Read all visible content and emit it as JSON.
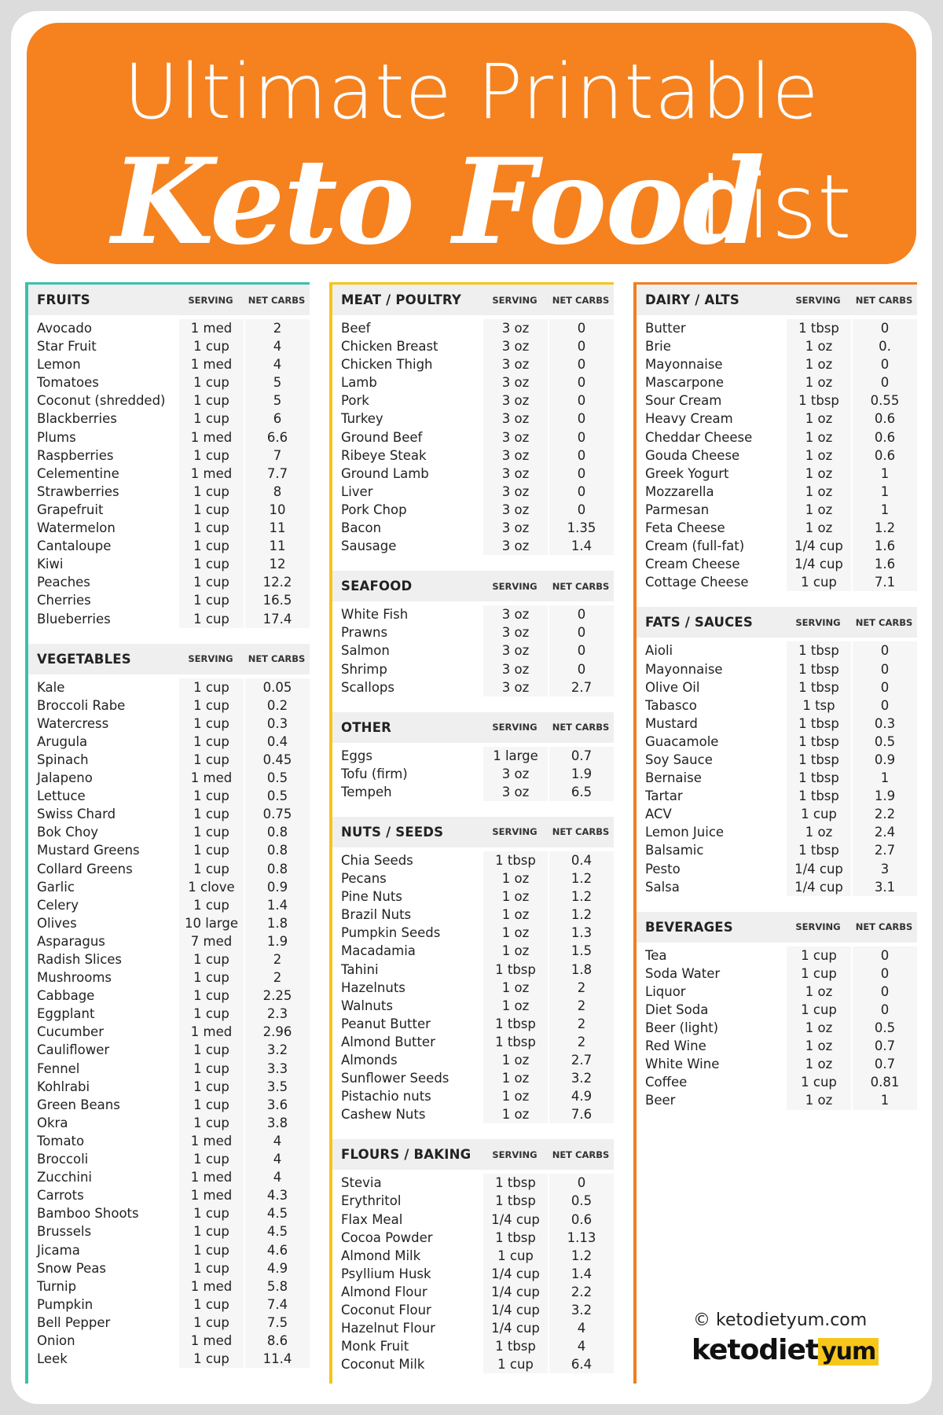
{
  "header": {
    "line1": "Ultimate Printable",
    "line2": "Keto Food",
    "line3": "List"
  },
  "columns": [
    {
      "sections": [
        {
          "title": "FRUITS",
          "headers": [
            "SERVING",
            "NET CARBS"
          ],
          "rows": [
            [
              "Avocado",
              "1 med",
              "2"
            ],
            [
              "Star Fruit",
              "1 cup",
              "4"
            ],
            [
              "Lemon",
              "1 med",
              "4"
            ],
            [
              "Tomatoes",
              "1 cup",
              "5"
            ],
            [
              "Coconut (shredded)",
              "1 cup",
              "5"
            ],
            [
              "Blackberries",
              "1 cup",
              "6"
            ],
            [
              "Plums",
              "1 med",
              "6.6"
            ],
            [
              "Raspberries",
              "1 cup",
              "7"
            ],
            [
              "Celementine",
              "1 med",
              "7.7"
            ],
            [
              "Strawberries",
              "1 cup",
              "8"
            ],
            [
              "Grapefruit",
              "1 cup",
              "10"
            ],
            [
              "Watermelon",
              "1 cup",
              "11"
            ],
            [
              "Cantaloupe",
              "1 cup",
              "11"
            ],
            [
              "Kiwi",
              "1 cup",
              "12"
            ],
            [
              "Peaches",
              "1 cup",
              "12.2"
            ],
            [
              "Cherries",
              "1 cup",
              "16.5"
            ],
            [
              "Blueberries",
              "1 cup",
              "17.4"
            ]
          ]
        },
        {
          "title": "VEGETABLES",
          "headers": [
            "SERVING",
            "NET CARBS"
          ],
          "rows": [
            [
              "Kale",
              "1 cup",
              "0.05"
            ],
            [
              "Broccoli Rabe",
              "1 cup",
              "0.2"
            ],
            [
              "Watercress",
              "1 cup",
              "0.3"
            ],
            [
              "Arugula",
              "1 cup",
              "0.4"
            ],
            [
              "Spinach",
              "1 cup",
              "0.45"
            ],
            [
              "Jalapeno",
              "1 med",
              "0.5"
            ],
            [
              "Lettuce",
              "1 cup",
              "0.5"
            ],
            [
              "Swiss Chard",
              "1 cup",
              "0.75"
            ],
            [
              "Bok Choy",
              "1 cup",
              "0.8"
            ],
            [
              "Mustard Greens",
              "1 cup",
              "0.8"
            ],
            [
              "Collard Greens",
              "1 cup",
              "0.8"
            ],
            [
              "Garlic",
              "1 clove",
              "0.9"
            ],
            [
              "Celery",
              "1 cup",
              "1.4"
            ],
            [
              "Olives",
              "10 large",
              "1.8"
            ],
            [
              "Asparagus",
              "7 med",
              "1.9"
            ],
            [
              "Radish Slices",
              "1 cup",
              "2"
            ],
            [
              "Mushrooms",
              "1 cup",
              "2"
            ],
            [
              "Cabbage",
              "1 cup",
              "2.25"
            ],
            [
              "Eggplant",
              "1 cup",
              "2.3"
            ],
            [
              "Cucumber",
              "1 med",
              "2.96"
            ],
            [
              "Cauliflower",
              "1 cup",
              "3.2"
            ],
            [
              "Fennel",
              "1 cup",
              "3.3"
            ],
            [
              "Kohlrabi",
              "1 cup",
              "3.5"
            ],
            [
              "Green Beans",
              "1 cup",
              "3.6"
            ],
            [
              "Okra",
              "1 cup",
              "3.8"
            ],
            [
              "Tomato",
              "1 med",
              "4"
            ],
            [
              "Broccoli",
              "1 cup",
              "4"
            ],
            [
              "Zucchini",
              "1 med",
              "4"
            ],
            [
              "Carrots",
              "1 med",
              "4.3"
            ],
            [
              "Bamboo Shoots",
              "1 cup",
              "4.5"
            ],
            [
              "Brussels",
              "1 cup",
              "4.5"
            ],
            [
              "Jicama",
              "1 cup",
              "4.6"
            ],
            [
              "Snow Peas",
              "1 cup",
              "4.9"
            ],
            [
              "Turnip",
              "1 med",
              "5.8"
            ],
            [
              "Pumpkin",
              "1 cup",
              "7.4"
            ],
            [
              "Bell Pepper",
              "1 cup",
              "7.5"
            ],
            [
              "Onion",
              "1 med",
              "8.6"
            ],
            [
              "Leek",
              "1 cup",
              "11.4"
            ]
          ]
        }
      ]
    },
    {
      "sections": [
        {
          "title": "MEAT / POULTRY",
          "headers": [
            "SERVING",
            "NET CARBS"
          ],
          "rows": [
            [
              "Beef",
              "3 oz",
              "0"
            ],
            [
              "Chicken Breast",
              "3 oz",
              "0"
            ],
            [
              "Chicken Thigh",
              "3 oz",
              "0"
            ],
            [
              "Lamb",
              "3 oz",
              "0"
            ],
            [
              "Pork",
              "3 oz",
              "0"
            ],
            [
              "Turkey",
              "3 oz",
              "0"
            ],
            [
              "Ground Beef",
              "3 oz",
              "0"
            ],
            [
              "Ribeye Steak",
              "3 oz",
              "0"
            ],
            [
              "Ground Lamb",
              "3 oz",
              "0"
            ],
            [
              "Liver",
              "3 oz",
              "0"
            ],
            [
              "Pork Chop",
              "3 oz",
              "0"
            ],
            [
              "Bacon",
              "3 oz",
              "1.35"
            ],
            [
              "Sausage",
              "3 oz",
              "1.4"
            ]
          ]
        },
        {
          "title": "SEAFOOD",
          "headers": [
            "SERVING",
            "NET CARBS"
          ],
          "rows": [
            [
              "White Fish",
              "3 oz",
              "0"
            ],
            [
              "Prawns",
              "3 oz",
              "0"
            ],
            [
              "Salmon",
              "3 oz",
              "0"
            ],
            [
              "Shrimp",
              "3 oz",
              "0"
            ],
            [
              "Scallops",
              "3 oz",
              "2.7"
            ]
          ]
        },
        {
          "title": "OTHER",
          "headers": [
            "SERVING",
            "NET CARBS"
          ],
          "rows": [
            [
              "Eggs",
              "1 large",
              "0.7"
            ],
            [
              "Tofu (firm)",
              "3 oz",
              "1.9"
            ],
            [
              "Tempeh",
              "3 oz",
              "6.5"
            ]
          ]
        },
        {
          "title": "NUTS / SEEDS",
          "headers": [
            "SERVING",
            "NET CARBS"
          ],
          "rows": [
            [
              "Chia Seeds",
              "1 tbsp",
              "0.4"
            ],
            [
              "Pecans",
              "1 oz",
              "1.2"
            ],
            [
              "Pine Nuts",
              "1 oz",
              "1.2"
            ],
            [
              "Brazil Nuts",
              "1 oz",
              "1.2"
            ],
            [
              "Pumpkin Seeds",
              "1 oz",
              "1.3"
            ],
            [
              "Macadamia",
              "1 oz",
              "1.5"
            ],
            [
              "Tahini",
              "1 tbsp",
              "1.8"
            ],
            [
              "Hazelnuts",
              "1 oz",
              "2"
            ],
            [
              "Walnuts",
              "1 oz",
              "2"
            ],
            [
              "Peanut Butter",
              "1 tbsp",
              "2"
            ],
            [
              "Almond Butter",
              "1 tbsp",
              "2"
            ],
            [
              "Almonds",
              "1 oz",
              "2.7"
            ],
            [
              "Sunflower Seeds",
              "1 oz",
              "3.2"
            ],
            [
              "Pistachio nuts",
              "1 oz",
              "4.9"
            ],
            [
              "Cashew Nuts",
              "1 oz",
              "7.6"
            ]
          ]
        },
        {
          "title": "FLOURS / BAKING",
          "headers": [
            "SERVING",
            "NET CARBS"
          ],
          "rows": [
            [
              "Stevia",
              "1 tbsp",
              "0"
            ],
            [
              "Erythritol",
              "1 tbsp",
              "0.5"
            ],
            [
              "Flax Meal",
              "1/4 cup",
              "0.6"
            ],
            [
              "Cocoa Powder",
              "1 tbsp",
              "1.13"
            ],
            [
              "Almond Milk",
              "1 cup",
              "1.2"
            ],
            [
              "Psyllium Husk",
              "1/4 cup",
              "1.4"
            ],
            [
              "Almond Flour",
              "1/4 cup",
              "2.2"
            ],
            [
              "Coconut Flour",
              "1/4 cup",
              "3.2"
            ],
            [
              "Hazelnut Flour",
              "1/4 cup",
              "4"
            ],
            [
              "Monk Fruit",
              "1 tbsp",
              "4"
            ],
            [
              "Coconut Milk",
              "1 cup",
              "6.4"
            ]
          ]
        }
      ]
    },
    {
      "sections": [
        {
          "title": "DAIRY / ALTS",
          "headers": [
            "SERVING",
            "NET CARBS"
          ],
          "rows": [
            [
              "Butter",
              "1 tbsp",
              "0"
            ],
            [
              "Brie",
              "1 oz",
              "0."
            ],
            [
              "Mayonnaise",
              "1 oz",
              "0"
            ],
            [
              "Mascarpone",
              "1 oz",
              "0"
            ],
            [
              "Sour Cream",
              "1 tbsp",
              "0.55"
            ],
            [
              "Heavy Cream",
              "1 oz",
              "0.6"
            ],
            [
              "Cheddar Cheese",
              "1 oz",
              "0.6"
            ],
            [
              "Gouda Cheese",
              "1 oz",
              "0.6"
            ],
            [
              "Greek Yogurt",
              "1 oz",
              "1"
            ],
            [
              "Mozzarella",
              "1 oz",
              "1"
            ],
            [
              "Parmesan",
              "1 oz",
              "1"
            ],
            [
              "Feta Cheese",
              "1 oz",
              "1.2"
            ],
            [
              "Cream (full-fat)",
              "1/4 cup",
              "1.6"
            ],
            [
              "Cream Cheese",
              "1/4 cup",
              "1.6"
            ],
            [
              "Cottage Cheese",
              "1 cup",
              "7.1"
            ]
          ]
        },
        {
          "title": "FATS / SAUCES",
          "headers": [
            "SERVING",
            "NET CARBS"
          ],
          "rows": [
            [
              "Aioli",
              "1 tbsp",
              "0"
            ],
            [
              "Mayonnaise",
              "1 tbsp",
              "0"
            ],
            [
              "Olive Oil",
              "1 tbsp",
              "0"
            ],
            [
              "Tabasco",
              "1 tsp",
              "0"
            ],
            [
              "Mustard",
              "1 tbsp",
              "0.3"
            ],
            [
              "Guacamole",
              "1 tbsp",
              "0.5"
            ],
            [
              "Soy Sauce",
              "1 tbsp",
              "0.9"
            ],
            [
              "Bernaise",
              "1 tbsp",
              "1"
            ],
            [
              "Tartar",
              "1 tbsp",
              "1.9"
            ],
            [
              "ACV",
              "1 cup",
              "2.2"
            ],
            [
              "Lemon Juice",
              "1 oz",
              "2.4"
            ],
            [
              "Balsamic",
              "1 tbsp",
              "2.7"
            ],
            [
              "Pesto",
              "1/4 cup",
              "3"
            ],
            [
              "Salsa",
              "1/4 cup",
              "3.1"
            ]
          ]
        },
        {
          "title": "BEVERAGES",
          "headers": [
            "SERVING",
            "NET CARBS"
          ],
          "rows": [
            [
              "Tea",
              "1 cup",
              "0"
            ],
            [
              "Soda Water",
              "1 cup",
              "0"
            ],
            [
              "Liquor",
              "1 oz",
              "0"
            ],
            [
              "Diet Soda",
              "1 cup",
              "0"
            ],
            [
              "Beer (light)",
              "1 oz",
              "0.5"
            ],
            [
              "Red Wine",
              "1 oz",
              "0.7"
            ],
            [
              "White Wine",
              "1 oz",
              "0.7"
            ],
            [
              "Coffee",
              "1 cup",
              "0.81"
            ],
            [
              "Beer",
              "1 oz",
              "1"
            ]
          ]
        }
      ]
    }
  ],
  "footer": {
    "copyright": "© ketodietyum.com",
    "logo_main": "ketodiet",
    "logo_accent": "yum"
  }
}
